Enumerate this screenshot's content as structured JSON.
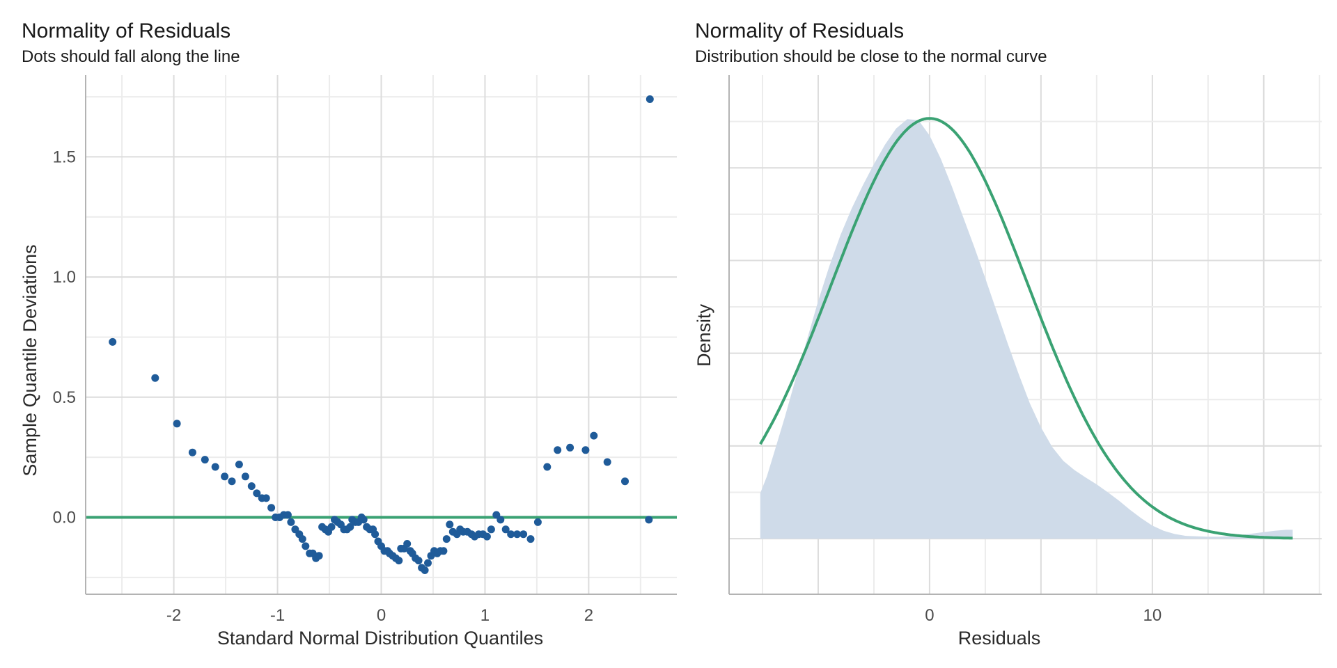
{
  "chart_data": [
    {
      "type": "scatter",
      "title": "Normality of Residuals",
      "subtitle": "Dots should fall along the line",
      "xlabel": "Standard Normal Distribution Quantiles",
      "ylabel": "Sample Quantile Deviations",
      "xlim": [
        -2.85,
        2.85
      ],
      "ylim": [
        -0.32,
        1.84
      ],
      "x_ticks": [
        -2,
        -1,
        0,
        1,
        2
      ],
      "x_tick_labels": [
        "-2",
        "-1",
        "0",
        "1",
        "2"
      ],
      "y_ticks": [
        0.0,
        0.5,
        1.0,
        1.5
      ],
      "y_tick_labels": [
        "0.0",
        "0.5",
        "1.0",
        "1.5"
      ],
      "grid": true,
      "reference_line": {
        "y": 0.0,
        "color": "#3aa273"
      },
      "point_color": "#1f5b99",
      "points": [
        [
          -2.59,
          0.73
        ],
        [
          -2.18,
          0.58
        ],
        [
          -1.97,
          0.39
        ],
        [
          -1.82,
          0.27
        ],
        [
          -1.7,
          0.24
        ],
        [
          -1.6,
          0.21
        ],
        [
          -1.51,
          0.17
        ],
        [
          -1.44,
          0.15
        ],
        [
          -1.37,
          0.22
        ],
        [
          -1.31,
          0.17
        ],
        [
          -1.25,
          0.13
        ],
        [
          -1.2,
          0.1
        ],
        [
          -1.15,
          0.08
        ],
        [
          -1.11,
          0.08
        ],
        [
          -1.06,
          0.04
        ],
        [
          -1.02,
          0.0
        ],
        [
          -0.98,
          0.0
        ],
        [
          -0.94,
          0.01
        ],
        [
          -0.9,
          0.01
        ],
        [
          -0.87,
          -0.02
        ],
        [
          -0.83,
          -0.05
        ],
        [
          -0.79,
          -0.07
        ],
        [
          -0.76,
          -0.09
        ],
        [
          -0.73,
          -0.12
        ],
        [
          -0.69,
          -0.15
        ],
        [
          -0.66,
          -0.15
        ],
        [
          -0.63,
          -0.17
        ],
        [
          -0.6,
          -0.16
        ],
        [
          -0.57,
          -0.04
        ],
        [
          -0.54,
          -0.05
        ],
        [
          -0.51,
          -0.06
        ],
        [
          -0.48,
          -0.04
        ],
        [
          -0.45,
          -0.01
        ],
        [
          -0.42,
          -0.02
        ],
        [
          -0.39,
          -0.03
        ],
        [
          -0.36,
          -0.05
        ],
        [
          -0.33,
          -0.05
        ],
        [
          -0.3,
          -0.04
        ],
        [
          -0.28,
          -0.01
        ],
        [
          -0.25,
          -0.02
        ],
        [
          -0.22,
          -0.02
        ],
        [
          -0.19,
          0.0
        ],
        [
          -0.17,
          -0.01
        ],
        [
          -0.14,
          -0.04
        ],
        [
          -0.11,
          -0.05
        ],
        [
          -0.08,
          -0.05
        ],
        [
          -0.06,
          -0.07
        ],
        [
          -0.03,
          -0.1
        ],
        [
          0.0,
          -0.12
        ],
        [
          0.03,
          -0.14
        ],
        [
          0.06,
          -0.14
        ],
        [
          0.08,
          -0.15
        ],
        [
          0.11,
          -0.16
        ],
        [
          0.14,
          -0.17
        ],
        [
          0.17,
          -0.18
        ],
        [
          0.19,
          -0.13
        ],
        [
          0.22,
          -0.13
        ],
        [
          0.25,
          -0.11
        ],
        [
          0.28,
          -0.14
        ],
        [
          0.3,
          -0.15
        ],
        [
          0.33,
          -0.17
        ],
        [
          0.36,
          -0.18
        ],
        [
          0.39,
          -0.21
        ],
        [
          0.42,
          -0.22
        ],
        [
          0.45,
          -0.19
        ],
        [
          0.48,
          -0.16
        ],
        [
          0.51,
          -0.14
        ],
        [
          0.54,
          -0.15
        ],
        [
          0.57,
          -0.14
        ],
        [
          0.6,
          -0.14
        ],
        [
          0.63,
          -0.09
        ],
        [
          0.66,
          -0.03
        ],
        [
          0.69,
          -0.06
        ],
        [
          0.73,
          -0.07
        ],
        [
          0.76,
          -0.05
        ],
        [
          0.79,
          -0.06
        ],
        [
          0.83,
          -0.06
        ],
        [
          0.87,
          -0.07
        ],
        [
          0.9,
          -0.08
        ],
        [
          0.94,
          -0.07
        ],
        [
          0.98,
          -0.07
        ],
        [
          1.02,
          -0.08
        ],
        [
          1.06,
          -0.05
        ],
        [
          1.11,
          0.01
        ],
        [
          1.15,
          -0.01
        ],
        [
          1.2,
          -0.05
        ],
        [
          1.25,
          -0.07
        ],
        [
          1.31,
          -0.07
        ],
        [
          1.37,
          -0.07
        ],
        [
          1.44,
          -0.09
        ],
        [
          1.51,
          -0.02
        ],
        [
          1.6,
          0.21
        ],
        [
          1.7,
          0.28
        ],
        [
          1.82,
          0.29
        ],
        [
          1.97,
          0.28
        ],
        [
          2.05,
          0.34
        ],
        [
          2.18,
          0.23
        ],
        [
          2.35,
          0.15
        ],
        [
          2.58,
          -0.01
        ],
        [
          2.59,
          1.74
        ]
      ]
    },
    {
      "type": "area",
      "title": "Normality of Residuals",
      "subtitle": "Distribution should be close to the normal curve",
      "xlabel": "Residuals",
      "ylabel": "Density",
      "xlim": [
        -9.0,
        17.6
      ],
      "ylim": [
        -0.012,
        0.1
      ],
      "x_ticks": [
        -5,
        0,
        5,
        10,
        15
      ],
      "x_tick_labels": [
        "",
        "0",
        "",
        "10",
        ""
      ],
      "y_ticks_labeled": false,
      "grid": true,
      "density_color": "#cfdbe9",
      "normal_curve_color": "#3aa273",
      "density": {
        "x": [
          -7.6,
          -7.3,
          -7.0,
          -6.5,
          -6.0,
          -5.5,
          -5.0,
          -4.5,
          -4.0,
          -3.5,
          -3.0,
          -2.5,
          -2.0,
          -1.5,
          -1.0,
          -0.5,
          0.0,
          0.5,
          1.0,
          1.5,
          2.0,
          2.5,
          3.0,
          3.5,
          4.0,
          4.5,
          5.0,
          5.5,
          6.0,
          6.5,
          7.0,
          7.5,
          8.0,
          8.5,
          9.0,
          9.5,
          10.0,
          10.5,
          11.0,
          11.5,
          12.0,
          12.5,
          13.0,
          13.5,
          14.0,
          14.5,
          15.0,
          15.5,
          16.0,
          16.3
        ],
        "y": [
          0.0098,
          0.0135,
          0.0182,
          0.0262,
          0.0347,
          0.043,
          0.0513,
          0.0588,
          0.0655,
          0.0712,
          0.0762,
          0.0808,
          0.085,
          0.0885,
          0.0905,
          0.0903,
          0.087,
          0.082,
          0.076,
          0.0695,
          0.063,
          0.0562,
          0.0492,
          0.0422,
          0.0355,
          0.0292,
          0.024,
          0.0198,
          0.0168,
          0.0148,
          0.0132,
          0.0117,
          0.01,
          0.0082,
          0.0062,
          0.0044,
          0.0028,
          0.0017,
          0.001,
          0.0006,
          0.0005,
          0.0004,
          0.0004,
          0.0005,
          0.0008,
          0.0011,
          0.0014,
          0.0017,
          0.0019,
          0.0019
        ]
      },
      "normal_curve": {
        "mean": 0.0,
        "sd": 4.4,
        "x_range": [
          -7.6,
          16.3
        ]
      }
    }
  ]
}
